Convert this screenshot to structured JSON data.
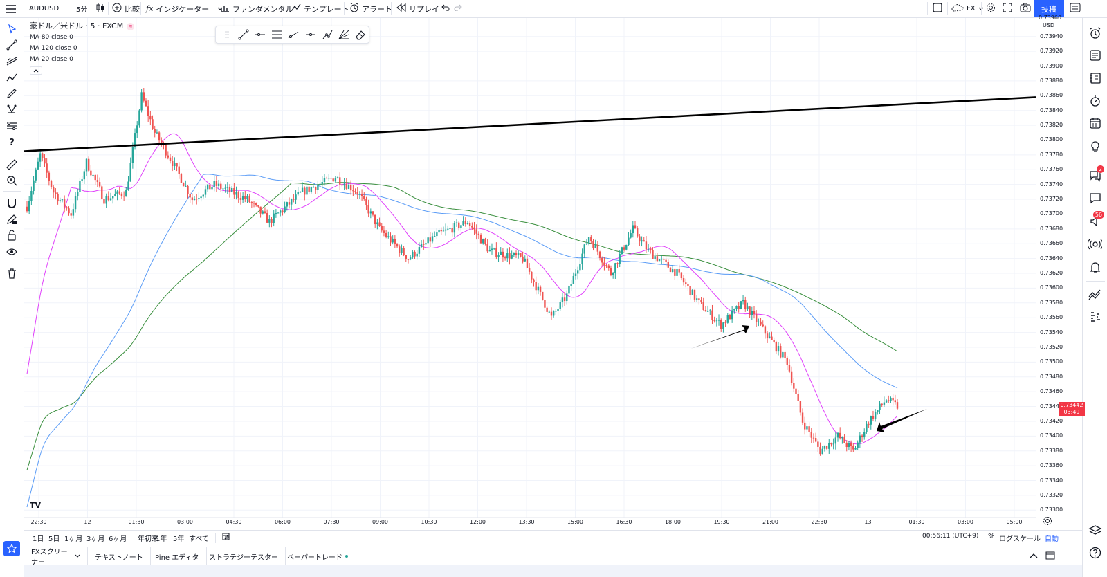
{
  "toolbar": {
    "symbol": "AUDUSD",
    "interval": "5分",
    "compare": "比較",
    "indicators": "インジケーター",
    "fundamentals": "ファンダメンタル",
    "templates": "テンプレート",
    "alert": "アラート",
    "replay": "リプレイ",
    "fx_label": "FX",
    "publish": "投稿"
  },
  "legend": {
    "title": "豪ドル／米ドル · 5 · FXCM",
    "ma80": "MA 80 close 0",
    "ma120": "MA 120 close 0",
    "ma20": "MA 20 close 0"
  },
  "price_axis": {
    "currency": "USD",
    "top_partial": "0.73960",
    "labels": [
      "0.73940",
      "0.73920",
      "0.73900",
      "0.73880",
      "0.73860",
      "0.73840",
      "0.73820",
      "0.73800",
      "0.73780",
      "0.73760",
      "0.73740",
      "0.73720",
      "0.73700",
      "0.73680",
      "0.73660",
      "0.73640",
      "0.73620",
      "0.73600",
      "0.73580",
      "0.73560",
      "0.73540",
      "0.73520",
      "0.73500",
      "0.73480",
      "0.73460",
      "0.73440",
      "0.73420",
      "0.73400",
      "0.73380",
      "0.73360",
      "0.73340",
      "0.73320",
      "0.73300"
    ],
    "current_price": "0.73442",
    "countdown": "03:49"
  },
  "time_axis": {
    "labels": [
      "22:30",
      "12",
      "01:30",
      "03:00",
      "04:30",
      "06:00",
      "07:30",
      "09:00",
      "10:30",
      "12:00",
      "13:30",
      "15:00",
      "16:30",
      "18:00",
      "19:30",
      "21:00",
      "22:30",
      "13",
      "01:30",
      "03:00",
      "05:00"
    ]
  },
  "range_bar": {
    "ranges": [
      "1日",
      "5日",
      "1ヶ月",
      "3ヶ月",
      "6ヶ月",
      "年初来",
      "1年",
      "5年",
      "すべて"
    ],
    "clock": "00:56:11 (UTC+9)",
    "percent": "%",
    "log": "ログスケール",
    "auto": "自動"
  },
  "bottom_tabs": [
    "FXスクリーナー",
    "テキストノート",
    "Pine エディタ",
    "ストラテジーテスター",
    "ペーパートレード"
  ],
  "right_badges": {
    "ideas": "2",
    "chat": "56"
  },
  "colors": {
    "up": "#26a69a",
    "down": "#ef5350",
    "ma20": "#e040fb",
    "ma80": "#5b9cf6",
    "ma120": "#388e3c",
    "accent": "#2962ff"
  },
  "chart_data": {
    "type": "candlestick",
    "symbol": "AUDUSD",
    "timeframe": "5分",
    "ylim": [
      0.7329,
      0.73965
    ],
    "current_price": 0.73442,
    "trendline": {
      "start": 0.73785,
      "end": 0.73858
    },
    "series": [
      {
        "name": "MA 20 close 0",
        "color": "#e040fb"
      },
      {
        "name": "MA 80 close 0",
        "color": "#5b9cf6"
      },
      {
        "name": "MA 120 close 0",
        "color": "#388e3c"
      }
    ],
    "anchors": [
      [
        0,
        0.7371
      ],
      [
        6,
        0.7378
      ],
      [
        12,
        0.7373
      ],
      [
        20,
        0.737
      ],
      [
        27,
        0.7377
      ],
      [
        35,
        0.7372
      ],
      [
        45,
        0.7373
      ],
      [
        52,
        0.7386
      ],
      [
        58,
        0.7381
      ],
      [
        66,
        0.7377
      ],
      [
        75,
        0.7372
      ],
      [
        85,
        0.7374
      ],
      [
        100,
        0.7372
      ],
      [
        110,
        0.7369
      ],
      [
        125,
        0.7373
      ],
      [
        140,
        0.7375
      ],
      [
        150,
        0.7373
      ],
      [
        160,
        0.7368
      ],
      [
        173,
        0.7364
      ],
      [
        185,
        0.7367
      ],
      [
        200,
        0.7369
      ],
      [
        210,
        0.7365
      ],
      [
        225,
        0.7364
      ],
      [
        238,
        0.7356
      ],
      [
        245,
        0.7359
      ],
      [
        255,
        0.7367
      ],
      [
        265,
        0.7362
      ],
      [
        275,
        0.7368
      ],
      [
        282,
        0.7365
      ],
      [
        295,
        0.7362
      ],
      [
        305,
        0.7358
      ],
      [
        315,
        0.7355
      ],
      [
        325,
        0.7358
      ],
      [
        335,
        0.7354
      ],
      [
        345,
        0.735
      ],
      [
        352,
        0.7342
      ],
      [
        360,
        0.7338
      ],
      [
        368,
        0.734
      ],
      [
        375,
        0.7338
      ],
      [
        382,
        0.7342
      ],
      [
        390,
        0.7345
      ],
      [
        395,
        0.7344
      ]
    ]
  }
}
